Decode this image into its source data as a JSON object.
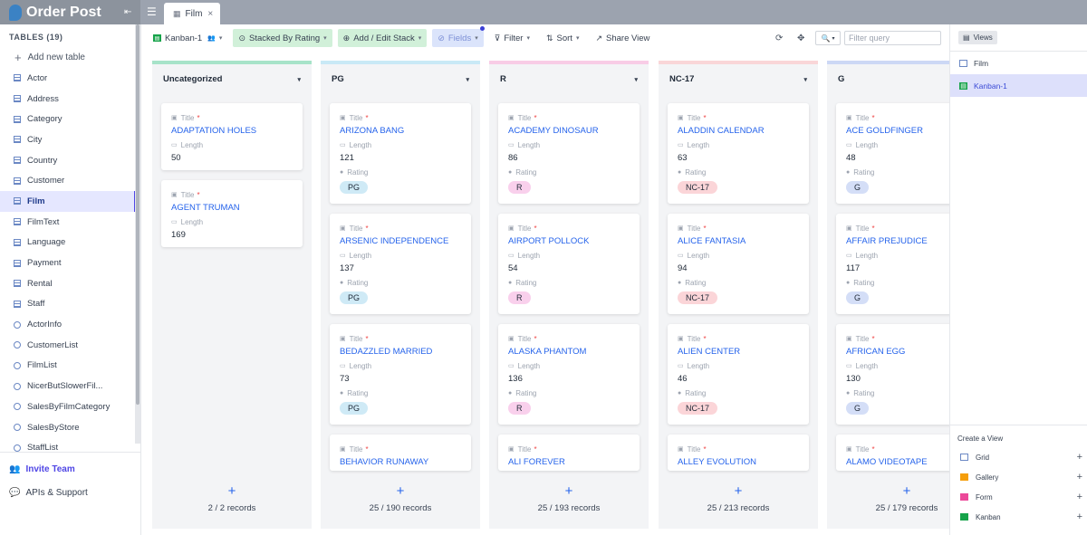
{
  "app": {
    "name": "Order Post",
    "tab_label": "Film"
  },
  "sidebar": {
    "tables_header": "TABLES (19)",
    "add_table": "Add new table",
    "items": [
      {
        "label": "Actor",
        "kind": "grid"
      },
      {
        "label": "Address",
        "kind": "grid"
      },
      {
        "label": "Category",
        "kind": "grid"
      },
      {
        "label": "City",
        "kind": "grid"
      },
      {
        "label": "Country",
        "kind": "grid"
      },
      {
        "label": "Customer",
        "kind": "grid"
      },
      {
        "label": "Film",
        "kind": "grid",
        "active": true
      },
      {
        "label": "FilmText",
        "kind": "grid"
      },
      {
        "label": "Language",
        "kind": "grid"
      },
      {
        "label": "Payment",
        "kind": "grid"
      },
      {
        "label": "Rental",
        "kind": "grid"
      },
      {
        "label": "Staff",
        "kind": "grid"
      },
      {
        "label": "ActorInfo",
        "kind": "view"
      },
      {
        "label": "CustomerList",
        "kind": "view"
      },
      {
        "label": "FilmList",
        "kind": "view"
      },
      {
        "label": "NicerButSlowerFil...",
        "kind": "view"
      },
      {
        "label": "SalesByFilmCategory",
        "kind": "view"
      },
      {
        "label": "SalesByStore",
        "kind": "view"
      },
      {
        "label": "StaffList",
        "kind": "view"
      }
    ],
    "invite": "Invite Team",
    "apis": "APIs & Support"
  },
  "toolbar": {
    "view_name": "Kanban-1",
    "stacked_by": "Stacked By Rating",
    "add_edit_stack": "Add / Edit Stack",
    "fields": "Fields",
    "filter": "Filter",
    "sort": "Sort",
    "share": "Share View",
    "filter_placeholder": "Filter query"
  },
  "fields": {
    "title": "Title",
    "length": "Length",
    "rating": "Rating",
    "required": "*"
  },
  "colors": {
    "Uncategorized": "#a7e3c9",
    "PG": "#c9e9f6",
    "R": "#f8cce6",
    "NC-17": "#f9d6d8",
    "G": "#ccd8f5",
    "badge_PG": "#cfeaf6",
    "badge_R": "#f9d0ec",
    "badge_NC-17": "#fbd5d8",
    "badge_G": "#d4def7"
  },
  "columns": [
    {
      "name": "Uncategorized",
      "count": "2 / 2 records",
      "cards": [
        {
          "title": "ADAPTATION HOLES",
          "length": "50",
          "rating": ""
        },
        {
          "title": "AGENT TRUMAN",
          "length": "169",
          "rating": ""
        }
      ]
    },
    {
      "name": "PG",
      "count": "25 / 190 records",
      "cards": [
        {
          "title": "ARIZONA BANG",
          "length": "121",
          "rating": "PG"
        },
        {
          "title": "ARSENIC INDEPENDENCE",
          "length": "137",
          "rating": "PG"
        },
        {
          "title": "BEDAZZLED MARRIED",
          "length": "73",
          "rating": "PG"
        },
        {
          "title": "BEHAVIOR RUNAWAY",
          "length": "",
          "rating": ""
        }
      ]
    },
    {
      "name": "R",
      "count": "25 / 193 records",
      "cards": [
        {
          "title": "ACADEMY DINOSAUR",
          "length": "86",
          "rating": "R"
        },
        {
          "title": "AIRPORT POLLOCK",
          "length": "54",
          "rating": "R"
        },
        {
          "title": "ALASKA PHANTOM",
          "length": "136",
          "rating": "R"
        },
        {
          "title": "ALI FOREVER",
          "length": "",
          "rating": ""
        }
      ]
    },
    {
      "name": "NC-17",
      "count": "25 / 213 records",
      "cards": [
        {
          "title": "ALADDIN CALENDAR",
          "length": "63",
          "rating": "NC-17"
        },
        {
          "title": "ALICE FANTASIA",
          "length": "94",
          "rating": "NC-17"
        },
        {
          "title": "ALIEN CENTER",
          "length": "46",
          "rating": "NC-17"
        },
        {
          "title": "ALLEY EVOLUTION",
          "length": "",
          "rating": ""
        }
      ]
    },
    {
      "name": "G",
      "count": "25 / 179 records",
      "cards": [
        {
          "title": "ACE GOLDFINGER",
          "length": "48",
          "rating": "G"
        },
        {
          "title": "AFFAIR PREJUDICE",
          "length": "117",
          "rating": "G"
        },
        {
          "title": "AFRICAN EGG",
          "length": "130",
          "rating": "G"
        },
        {
          "title": "ALAMO VIDEOTAPE",
          "length": "",
          "rating": ""
        }
      ]
    }
  ],
  "views_panel": {
    "button": "Views",
    "items": [
      {
        "label": "Film",
        "icon": "grid-icon"
      },
      {
        "label": "Kanban-1",
        "icon": "kanban-icon",
        "active": true
      }
    ],
    "create_header": "Create a View",
    "create_items": [
      {
        "label": "Grid",
        "icon": "grid-icon",
        "color": "#6b88c4"
      },
      {
        "label": "Gallery",
        "icon": "gallery-icon",
        "color": "#f59e0b"
      },
      {
        "label": "Form",
        "icon": "form-icon",
        "color": "#ec4899"
      },
      {
        "label": "Kanban",
        "icon": "kanban-icon",
        "color": "#16a34a"
      }
    ]
  }
}
